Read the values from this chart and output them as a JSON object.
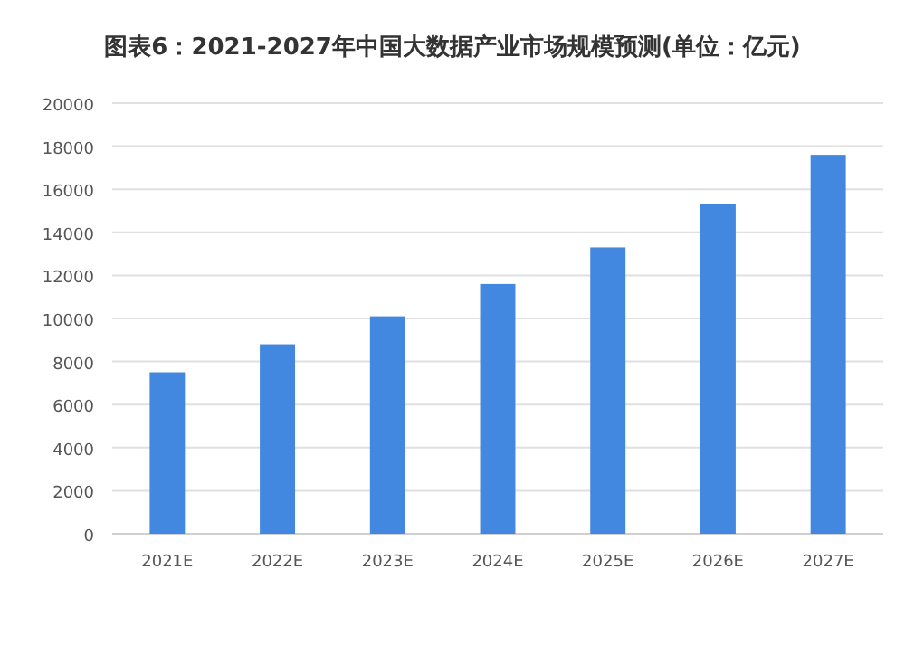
{
  "chart_data": {
    "type": "bar",
    "title": "图表6：2021-2027年中国大数据产业市场规模预测(单位：亿元)",
    "categories": [
      "2021E",
      "2022E",
      "2023E",
      "2024E",
      "2025E",
      "2026E",
      "2027E"
    ],
    "values": [
      7500,
      8800,
      10100,
      11600,
      13300,
      15300,
      17600
    ],
    "color": "#4287e0",
    "ylim": [
      0,
      20000
    ],
    "yticks": [
      0,
      2000,
      4000,
      6000,
      8000,
      10000,
      12000,
      14000,
      16000,
      18000,
      20000
    ],
    "grid": "y"
  }
}
